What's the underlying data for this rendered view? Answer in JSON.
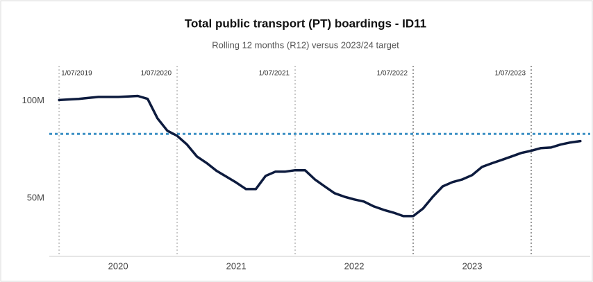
{
  "chart_data": {
    "type": "line",
    "title": "Total public transport (PT) boardings - ID11",
    "subtitle": "Rolling 12 months (R12) versus 2023/24 target",
    "x": [
      "2019-07",
      "2019-08",
      "2019-09",
      "2019-10",
      "2019-11",
      "2019-12",
      "2020-01",
      "2020-02",
      "2020-03",
      "2020-04",
      "2020-05",
      "2020-06",
      "2020-07",
      "2020-08",
      "2020-09",
      "2020-10",
      "2020-11",
      "2020-12",
      "2021-01",
      "2021-02",
      "2021-03",
      "2021-04",
      "2021-05",
      "2021-06",
      "2021-07",
      "2021-08",
      "2021-09",
      "2021-10",
      "2021-11",
      "2021-12",
      "2022-01",
      "2022-02",
      "2022-03",
      "2022-04",
      "2022-05",
      "2022-06",
      "2022-07",
      "2022-08",
      "2022-09",
      "2022-10",
      "2022-11",
      "2022-12",
      "2023-01",
      "2023-02",
      "2023-03",
      "2023-04",
      "2023-05",
      "2023-06",
      "2023-07",
      "2023-08",
      "2023-09",
      "2023-10",
      "2023-11",
      "2023-12"
    ],
    "series": [
      {
        "name": "R12 boardings",
        "color": "#0d1b3e",
        "values": [
          100.4,
          100.7,
          101,
          101.5,
          102,
          102,
          102,
          102.2,
          102.5,
          101,
          91,
          84.6,
          82,
          77.5,
          71.4,
          68,
          64,
          61,
          58,
          54.6,
          54.6,
          61.4,
          63.6,
          63.6,
          64.3,
          64.3,
          59.6,
          56,
          52.5,
          50.7,
          49.3,
          48.2,
          45.7,
          43.9,
          42.5,
          40.7,
          40.7,
          44.6,
          50.7,
          56,
          58.2,
          59.6,
          61.8,
          66,
          67.9,
          69.6,
          71.4,
          73.2,
          74.3,
          75.7,
          76,
          77.5,
          78.6,
          79.3
        ]
      }
    ],
    "target": {
      "value": 83,
      "color": "#3a8fc4"
    },
    "reference_lines": [
      {
        "x": "2019-07",
        "label": "1/07/2019"
      },
      {
        "x": "2020-07",
        "label": "1/07/2020"
      },
      {
        "x": "2021-07",
        "label": "1/07/2021"
      },
      {
        "x": "2022-07",
        "label": "1/07/2022"
      },
      {
        "x": "2023-07",
        "label": "1/07/2023"
      }
    ],
    "year_labels": [
      "2020",
      "2021",
      "2022",
      "2023"
    ],
    "xlim": [
      "2019-06",
      "2024-01"
    ],
    "ylim": [
      20,
      118
    ],
    "yticks": [
      {
        "value": 50,
        "label": "50M"
      },
      {
        "value": 100,
        "label": "100M"
      }
    ],
    "grid": false
  }
}
